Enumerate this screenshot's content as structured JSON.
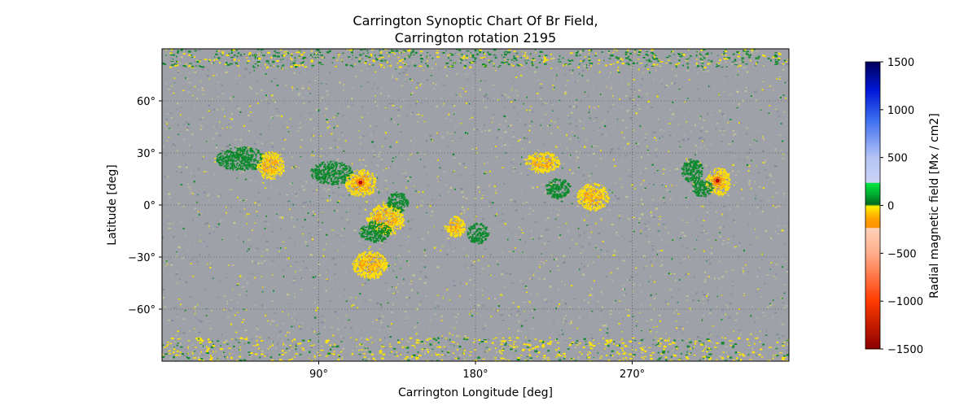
{
  "chart_data": {
    "type": "heatmap",
    "title_line1": "Carrington Synoptic Chart Of Br Field,",
    "title_line2": "Carrington rotation 2195",
    "xlabel": "Carrington Longitude [deg]",
    "ylabel": "Latitude [deg]",
    "xlim": [
      0,
      360
    ],
    "ylim": [
      -90,
      90
    ],
    "x_ticks": [
      {
        "value": 90,
        "label": "90°"
      },
      {
        "value": 180,
        "label": "180°"
      },
      {
        "value": 270,
        "label": "270°"
      }
    ],
    "y_ticks": [
      {
        "value": 60,
        "label": "60°"
      },
      {
        "value": 30,
        "label": "30°"
      },
      {
        "value": 0,
        "label": "0°"
      },
      {
        "value": -30,
        "label": "−30°"
      },
      {
        "value": -60,
        "label": "−60°"
      }
    ],
    "grid": true,
    "colorbar": {
      "label": "Radial magnetic field [Mx / cm2]",
      "range": [
        -1500,
        1500
      ],
      "ticks": [
        {
          "value": 1500,
          "label": "1500"
        },
        {
          "value": 1000,
          "label": "1000"
        },
        {
          "value": 500,
          "label": "500"
        },
        {
          "value": 0,
          "label": "0"
        },
        {
          "value": -500,
          "label": "−500"
        },
        {
          "value": -1000,
          "label": "−1000"
        },
        {
          "value": -1500,
          "label": "−1500"
        }
      ],
      "stops": [
        {
          "value": 1500,
          "color": "#00005a"
        },
        {
          "value": 1200,
          "color": "#0018d8"
        },
        {
          "value": 900,
          "color": "#3a6cf0"
        },
        {
          "value": 500,
          "color": "#b4c4f5"
        },
        {
          "value": 240,
          "color": "#c9d3f3"
        },
        {
          "value": 230,
          "color": "#00e640"
        },
        {
          "value": 120,
          "color": "#00b030"
        },
        {
          "value": 10,
          "color": "#006a1e"
        },
        {
          "value": -10,
          "color": "#fff000"
        },
        {
          "value": -140,
          "color": "#ffa000"
        },
        {
          "value": -230,
          "color": "#ff9000"
        },
        {
          "value": -240,
          "color": "#ffd0b8"
        },
        {
          "value": -500,
          "color": "#ffae8a"
        },
        {
          "value": -1000,
          "color": "#ff3a00"
        },
        {
          "value": -1500,
          "color": "#8a0000"
        }
      ]
    },
    "background_color": "#9ea1a8",
    "regions": [
      {
        "lon": 97,
        "lat": 19,
        "rx": 12,
        "ry": 7,
        "polarity": "positive"
      },
      {
        "lon": 114,
        "lat": 13,
        "rx": 9,
        "ry": 8,
        "polarity": "negative",
        "core": true
      },
      {
        "lon": 128,
        "lat": -8,
        "rx": 11,
        "ry": 9,
        "polarity": "negative"
      },
      {
        "lon": 122,
        "lat": -15,
        "rx": 9,
        "ry": 6,
        "polarity": "positive"
      },
      {
        "lon": 135,
        "lat": 2,
        "rx": 6,
        "ry": 6,
        "polarity": "positive"
      },
      {
        "lon": 168,
        "lat": -12,
        "rx": 6,
        "ry": 6,
        "polarity": "negative"
      },
      {
        "lon": 181,
        "lat": -16,
        "rx": 6,
        "ry": 6,
        "polarity": "positive"
      },
      {
        "lon": 227,
        "lat": 10,
        "rx": 7,
        "ry": 6,
        "polarity": "positive"
      },
      {
        "lon": 247,
        "lat": 5,
        "rx": 9,
        "ry": 8,
        "polarity": "negative"
      },
      {
        "lon": 304,
        "lat": 20,
        "rx": 6,
        "ry": 7,
        "polarity": "positive"
      },
      {
        "lon": 319,
        "lat": 14,
        "rx": 7,
        "ry": 8,
        "polarity": "negative",
        "core": true
      },
      {
        "lon": 310,
        "lat": 10,
        "rx": 6,
        "ry": 5,
        "polarity": "positive"
      },
      {
        "lon": 45,
        "lat": 27,
        "rx": 14,
        "ry": 7,
        "polarity": "positive"
      },
      {
        "lon": 62,
        "lat": 23,
        "rx": 8,
        "ry": 8,
        "polarity": "negative"
      },
      {
        "lon": 119,
        "lat": -34,
        "rx": 10,
        "ry": 8,
        "polarity": "negative"
      },
      {
        "lon": 218,
        "lat": 25,
        "rx": 10,
        "ry": 6,
        "polarity": "negative"
      }
    ]
  }
}
